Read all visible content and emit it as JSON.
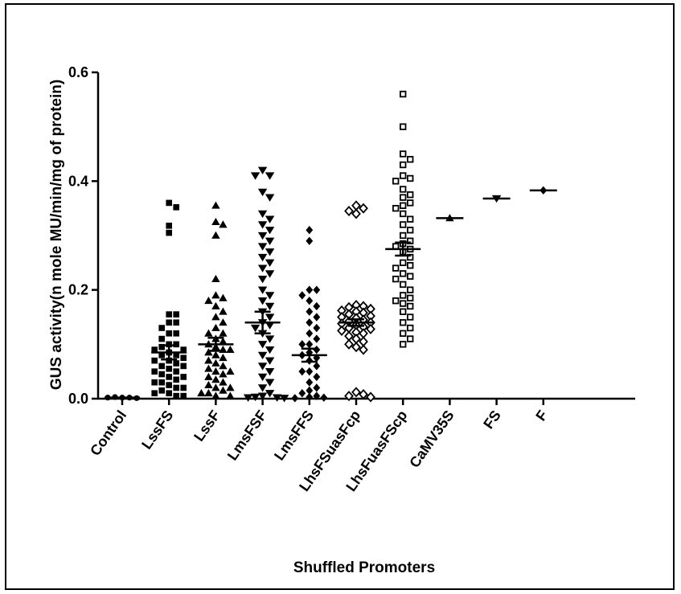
{
  "chart_data": {
    "type": "scatter",
    "title": "",
    "xlabel": "Shuffled Promoters",
    "ylabel": "GUS activity(n mole MU/min/mg of protein)",
    "ylim": [
      0,
      0.6
    ],
    "yticks": [
      "0.0",
      "0.2",
      "0.4",
      "0.6"
    ],
    "grid": false,
    "legend": "none",
    "categories": [
      "Control",
      "LssFS",
      "LssF",
      "LmsFSF",
      "LmsFFS",
      "LhsFSuasFcp",
      "LhsFuasFScp",
      "CaMV35S",
      "FS",
      "F"
    ],
    "series": [
      {
        "category": "Control",
        "marker": "circle",
        "mean": 0.002,
        "sem": 0.0,
        "values": [
          0.002,
          0.002,
          0.003,
          0.001,
          0.002
        ]
      },
      {
        "category": "LssFS",
        "marker": "square",
        "mean": 0.085,
        "sem": 0.013,
        "values": [
          0.36,
          0.352,
          0.318,
          0.305,
          0.155,
          0.155,
          0.14,
          0.14,
          0.13,
          0.12,
          0.12,
          0.11,
          0.1,
          0.1,
          0.095,
          0.09,
          0.09,
          0.085,
          0.08,
          0.08,
          0.075,
          0.07,
          0.07,
          0.065,
          0.06,
          0.06,
          0.055,
          0.05,
          0.05,
          0.045,
          0.04,
          0.04,
          0.035,
          0.03,
          0.03,
          0.025,
          0.02,
          0.02,
          0.015,
          0.01,
          0.01,
          0.005,
          0.005
        ]
      },
      {
        "category": "LssF",
        "marker": "triangle-up",
        "mean": 0.1,
        "sem": 0.012,
        "values": [
          0.355,
          0.325,
          0.32,
          0.3,
          0.22,
          0.19,
          0.185,
          0.18,
          0.17,
          0.16,
          0.15,
          0.14,
          0.13,
          0.12,
          0.12,
          0.11,
          0.105,
          0.1,
          0.095,
          0.09,
          0.09,
          0.085,
          0.08,
          0.075,
          0.07,
          0.065,
          0.06,
          0.055,
          0.05,
          0.05,
          0.045,
          0.04,
          0.035,
          0.03,
          0.025,
          0.02,
          0.02,
          0.015,
          0.01,
          0.01,
          0.005,
          0.005
        ]
      },
      {
        "category": "LmsFSF",
        "marker": "triangle-down",
        "mean": 0.14,
        "sem": 0.02,
        "values": [
          0.42,
          0.41,
          0.41,
          0.38,
          0.37,
          0.34,
          0.33,
          0.32,
          0.31,
          0.3,
          0.29,
          0.28,
          0.27,
          0.26,
          0.25,
          0.24,
          0.23,
          0.22,
          0.2,
          0.19,
          0.18,
          0.17,
          0.16,
          0.15,
          0.14,
          0.135,
          0.13,
          0.12,
          0.11,
          0.1,
          0.09,
          0.08,
          0.07,
          0.06,
          0.05,
          0.04,
          0.03,
          0.02,
          0.01,
          0.005,
          0.003,
          0.002,
          0.002,
          0.001
        ]
      },
      {
        "category": "LmsFFS",
        "marker": "diamond",
        "mean": 0.08,
        "sem": 0.012,
        "values": [
          0.31,
          0.29,
          0.2,
          0.2,
          0.19,
          0.18,
          0.17,
          0.16,
          0.15,
          0.14,
          0.13,
          0.12,
          0.11,
          0.1,
          0.1,
          0.09,
          0.085,
          0.08,
          0.075,
          0.07,
          0.06,
          0.05,
          0.05,
          0.04,
          0.03,
          0.02,
          0.015,
          0.01,
          0.005,
          0.003,
          0.002,
          0.001
        ]
      },
      {
        "category": "LhsFSuasFcp",
        "marker": "open-diamond",
        "mean": 0.14,
        "sem": 0.006,
        "values": [
          0.355,
          0.35,
          0.345,
          0.34,
          0.172,
          0.17,
          0.168,
          0.165,
          0.162,
          0.16,
          0.158,
          0.155,
          0.152,
          0.15,
          0.148,
          0.145,
          0.142,
          0.14,
          0.138,
          0.135,
          0.132,
          0.13,
          0.128,
          0.125,
          0.122,
          0.12,
          0.115,
          0.11,
          0.105,
          0.1,
          0.095,
          0.09,
          0.012,
          0.008,
          0.005,
          0.003
        ]
      },
      {
        "category": "LhsFuasFScp",
        "marker": "open-square",
        "mean": 0.275,
        "sem": 0.012,
        "values": [
          0.56,
          0.5,
          0.45,
          0.44,
          0.43,
          0.41,
          0.405,
          0.4,
          0.385,
          0.375,
          0.37,
          0.36,
          0.355,
          0.35,
          0.34,
          0.33,
          0.32,
          0.31,
          0.3,
          0.29,
          0.285,
          0.28,
          0.275,
          0.27,
          0.26,
          0.25,
          0.245,
          0.24,
          0.23,
          0.225,
          0.22,
          0.21,
          0.2,
          0.19,
          0.185,
          0.18,
          0.175,
          0.17,
          0.16,
          0.15,
          0.14,
          0.13,
          0.12,
          0.11,
          0.1
        ]
      },
      {
        "category": "CaMV35S",
        "marker": "triangle-up",
        "mean": 0.332,
        "sem": 0.0,
        "values": [
          0.332
        ]
      },
      {
        "category": "FS",
        "marker": "triangle-down",
        "mean": 0.368,
        "sem": 0.0,
        "values": [
          0.368
        ]
      },
      {
        "category": "F",
        "marker": "diamond",
        "mean": 0.383,
        "sem": 0.0,
        "values": [
          0.383
        ]
      }
    ]
  }
}
